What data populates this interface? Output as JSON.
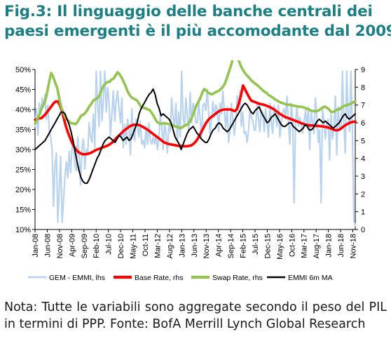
{
  "figure": {
    "title_line1": "Fig.3: Il linguaggio delle banche centrali dei",
    "title_line2": "paesi emergenti è il più accomodante dal 2009",
    "note": "Nota: Tutte le variabili sono aggregate secondo il peso del PIL in termini di PPP. Fonte: BofA Merrill Lynch Global Research"
  },
  "colors": {
    "title": "#1b7f86",
    "gem_emmi": "#b9d3ee",
    "base_rate": "#ff0000",
    "swap_rate": "#92c44f",
    "emmi_6m_ma": "#000000"
  },
  "chart_data": {
    "type": "line",
    "x_start": "2008-01",
    "x_end": "2018-12",
    "x_tick_labels": [
      "Jan-08",
      "Jun-08",
      "Nov-08",
      "Apr-09",
      "Sep-09",
      "Feb-10",
      "Jul-10",
      "Dec-10",
      "May-11",
      "Oct-11",
      "Mar-12",
      "Aug-12",
      "Jan-13",
      "Jun-13",
      "Nov-13",
      "Apr-14",
      "Sep-14",
      "Feb-15",
      "Jul-15",
      "Dec-15",
      "May-16",
      "Oct-16",
      "Mar-17",
      "Aug-17",
      "Jan-18",
      "Jun-18",
      "Nov-18"
    ],
    "y_left": {
      "range": [
        10,
        50
      ],
      "tick_labels": [
        "10%",
        "15%",
        "20%",
        "25%",
        "30%",
        "35%",
        "40%",
        "45%",
        "50%"
      ]
    },
    "y_right": {
      "range": [
        0,
        9
      ],
      "tick_labels": [
        "0",
        "1",
        "2",
        "3",
        "4",
        "5",
        "6",
        "7",
        "8",
        "9"
      ]
    },
    "grid": false,
    "legend_position": "bottom",
    "series": [
      {
        "name": "GEM - EMMI, lhs",
        "axis": "right",
        "style": "light-blue volatile line",
        "values": [
          5.8,
          6.8,
          5.3,
          7.1,
          6.5,
          7.4,
          6.9,
          7.6,
          6.2,
          7.0,
          5.6,
          5.2,
          4.5,
          1.3,
          3.6,
          4.3,
          0.4,
          2.2,
          4.1,
          0.4,
          1.6,
          3.0,
          3.8,
          2.9,
          4.4,
          3.2,
          4.6,
          4.8,
          3.6,
          3.3,
          5.2,
          4.2,
          2.5,
          4.6,
          5.1,
          3.4,
          4.5,
          4.2,
          6.0,
          5.2,
          4.9,
          6.5,
          4.6,
          8.9,
          7.0,
          5.8,
          8.9,
          6.1,
          7.3,
          8.9,
          6.6,
          8.0,
          7.2,
          5.3,
          6.5,
          7.8,
          6.1,
          7.2,
          7.8,
          6.8,
          6.0,
          7.4,
          4.6,
          5.9,
          4.8,
          6.2,
          5.8,
          4.2,
          6.8,
          5.5,
          5.0,
          6.2,
          5.8,
          5.2,
          6.1,
          4.8,
          5.0,
          4.6,
          5.8,
          4.8,
          6.0,
          5.0,
          4.8,
          5.2,
          4.8,
          5.3,
          4.5,
          5.1,
          6.5,
          5.8,
          4.5,
          6.0,
          5.4,
          4.3,
          5.8,
          5.5,
          7.4,
          6.3,
          5.8,
          7.1,
          5.0,
          6.6,
          5.2,
          8.9,
          6.4,
          5.8,
          7.4,
          6.3,
          5.5,
          7.7,
          6.0,
          7.1,
          6.8,
          6.0,
          6.0,
          7.2,
          6.2,
          5.2,
          7.0,
          7.1,
          6.7,
          7.9,
          6.6,
          5.4,
          6.2,
          7.2,
          6.3,
          7.0,
          6.8,
          5.5,
          7.1,
          6.5,
          7.8,
          6.7,
          5.7,
          6.9,
          4.9,
          5.6,
          7.1,
          6.2,
          5.3,
          6.1,
          7.5,
          6.8,
          7.8,
          5.8,
          6.6,
          5.4,
          5.5,
          4.9,
          5.6,
          6.8,
          6.3,
          6.1,
          5.6,
          5.6,
          7.1,
          6.2,
          5.5,
          6.7,
          6.6,
          5.5,
          6.8,
          6.0,
          5.2,
          7.1,
          6.0,
          5.4,
          7.0,
          6.3,
          5.8,
          7.0,
          5.2,
          6.0,
          6.6,
          6.8,
          6.2,
          7.5,
          6.2,
          4.8,
          7.1,
          6.3,
          1.5,
          6.0,
          6.9,
          5.8,
          6.3,
          5.9,
          5.4,
          6.0,
          6.7,
          5.8,
          6.9,
          4.5,
          6.7,
          6.0,
          5.4,
          7.4,
          6.4,
          4.9,
          5.6,
          1.5,
          6.8,
          6.1,
          5.1,
          6.0,
          6.2,
          3.9,
          6.5,
          5.1,
          5.7,
          7.5,
          4.2,
          6.9,
          5.6,
          5.6,
          8.9,
          5.9,
          4.3,
          8.9,
          6.6,
          5.5,
          8.9,
          5.4,
          0.5,
          0.2
        ]
      },
      {
        "name": "Base Rate, rhs",
        "axis": "left",
        "style": "thick red line",
        "values": [
          37.4,
          37.6,
          37.8,
          37.8,
          38.3,
          38.8,
          39.5,
          40.2,
          40.9,
          41.6,
          42.0,
          42.0,
          41.0,
          39.5,
          37.5,
          35.5,
          34.0,
          32.7,
          31.5,
          30.5,
          29.8,
          29.3,
          29.0,
          28.8,
          28.8,
          28.9,
          29.0,
          29.2,
          29.5,
          29.8,
          30.0,
          30.2,
          30.4,
          30.6,
          30.8,
          31.0,
          31.3,
          31.7,
          32.2,
          32.8,
          33.3,
          33.8,
          34.3,
          34.8,
          35.2,
          35.6,
          35.9,
          36.1,
          36.2,
          36.2,
          36.1,
          35.9,
          35.6,
          35.3,
          35.0,
          34.6,
          34.2,
          33.8,
          33.4,
          33.0,
          32.6,
          32.2,
          31.8,
          31.6,
          31.4,
          31.3,
          31.2,
          31.1,
          31.0,
          30.9,
          30.9,
          30.8,
          30.8,
          30.8,
          30.9,
          31.0,
          31.3,
          31.8,
          32.5,
          33.4,
          34.4,
          35.4,
          36.4,
          37.2,
          37.8,
          38.2,
          38.6,
          39.0,
          39.4,
          39.7,
          39.9,
          40.0,
          40.0,
          40.0,
          40.0,
          39.8,
          39.6,
          40.0,
          41.5,
          43.5,
          46.0,
          45.0,
          44.0,
          43.0,
          42.2,
          42.0,
          41.8,
          41.6,
          41.4,
          41.3,
          41.2,
          41.0,
          40.8,
          40.6,
          40.3,
          40.0,
          39.6,
          39.2,
          38.8,
          38.5,
          38.2,
          38.0,
          37.8,
          37.6,
          37.4,
          37.2,
          37.0,
          36.8,
          36.6,
          36.4,
          36.2,
          36.1,
          36.0,
          36.0,
          36.0,
          35.9,
          35.9,
          35.8,
          35.8,
          35.7,
          35.6,
          35.5,
          35.3,
          35.1,
          34.9,
          34.8,
          34.9,
          35.2,
          35.6,
          36.0,
          36.3,
          36.6,
          36.8,
          36.9,
          37.0
        ]
      },
      {
        "name": "Swap Rate, rhs",
        "axis": "left",
        "style": "thick green line",
        "values": [
          36.5,
          37.4,
          38.5,
          39.9,
          41.1,
          42.1,
          44.2,
          46.8,
          49.1,
          48.2,
          46.7,
          45.4,
          42.9,
          40.6,
          39.3,
          38.0,
          37.4,
          36.9,
          36.6,
          36.5,
          36.3,
          36.8,
          37.7,
          38.5,
          38.7,
          39.2,
          39.9,
          40.8,
          41.5,
          42.3,
          42.6,
          42.8,
          43.5,
          44.8,
          45.9,
          46.5,
          46.9,
          46.9,
          47.5,
          47.7,
          48.5,
          49.3,
          48.8,
          48.0,
          46.9,
          45.8,
          44.5,
          43.6,
          43.0,
          42.7,
          42.5,
          42.0,
          41.2,
          40.5,
          40.4,
          40.3,
          40.0,
          39.8,
          39.1,
          38.3,
          37.3,
          36.7,
          36.5,
          36.4,
          36.6,
          36.5,
          36.4,
          36.3,
          36.0,
          35.9,
          35.7,
          35.6,
          35.3,
          35.5,
          35.9,
          36.1,
          36.4,
          37.0,
          38.2,
          39.4,
          40.9,
          41.8,
          42.8,
          44.2,
          45.1,
          44.7,
          44.2,
          43.9,
          43.8,
          44.1,
          44.4,
          44.6,
          45.0,
          45.5,
          46.2,
          47.5,
          49.0,
          50.5,
          52.3,
          54.0,
          53.8,
          52.5,
          51.1,
          50.1,
          49.3,
          48.6,
          48.1,
          47.5,
          47.0,
          46.6,
          46.2,
          45.8,
          45.3,
          44.8,
          44.4,
          44.1,
          43.6,
          43.3,
          43.0,
          42.6,
          42.3,
          42.0,
          41.7,
          41.6,
          41.4,
          41.2,
          41.2,
          41.1,
          41.0,
          40.9,
          40.8,
          40.7,
          40.7,
          40.6,
          40.4,
          40.2,
          40.0,
          39.7,
          39.6,
          39.6,
          39.6,
          39.8,
          40.2,
          40.6,
          40.7,
          40.4,
          40.0,
          39.4,
          39.4,
          39.6,
          40.0,
          40.0,
          40.4,
          40.8,
          41.0,
          41.1,
          41.3,
          41.5,
          41.8,
          42.1
        ]
      },
      {
        "name": "EMMI 6m MA",
        "axis": "right",
        "style": "black line",
        "values": [
          4.5,
          4.6,
          4.7,
          4.8,
          4.9,
          5.0,
          5.2,
          5.4,
          5.6,
          5.8,
          6.0,
          6.2,
          6.4,
          6.6,
          6.6,
          6.5,
          6.2,
          5.9,
          5.5,
          5.0,
          4.4,
          3.8,
          3.3,
          2.9,
          2.7,
          2.6,
          2.6,
          2.8,
          3.1,
          3.4,
          3.7,
          4.0,
          4.2,
          4.5,
          4.8,
          5.0,
          5.1,
          5.2,
          5.1,
          5.0,
          4.9,
          5.1,
          5.3,
          5.2,
          5.0,
          5.1,
          5.2,
          5.0,
          5.1,
          5.4,
          5.7,
          6.0,
          6.5,
          6.8,
          7.0,
          7.2,
          7.4,
          7.6,
          7.7,
          7.9,
          7.6,
          7.1,
          6.8,
          6.4,
          6.5,
          6.4,
          6.3,
          6.2,
          6.0,
          5.6,
          5.2,
          5.0,
          4.8,
          4.5,
          4.8,
          5.1,
          5.4,
          5.6,
          5.7,
          5.8,
          5.6,
          5.4,
          5.3,
          5.1,
          5.0,
          4.9,
          4.9,
          5.1,
          5.4,
          5.6,
          5.7,
          5.9,
          6.0,
          5.9,
          5.7,
          5.6,
          5.5,
          5.6,
          5.8,
          6.0,
          6.2,
          6.4,
          6.6,
          6.8,
          7.0,
          7.1,
          7.0,
          6.8,
          6.6,
          6.5,
          6.7,
          6.8,
          6.9,
          6.6,
          6.4,
          6.2,
          6.0,
          6.1,
          6.3,
          6.4,
          6.5,
          6.3,
          6.1,
          5.9,
          5.8,
          5.8,
          5.9,
          6.0,
          6.0,
          5.8,
          5.7,
          5.6,
          5.5,
          5.6,
          5.7,
          5.9,
          5.8,
          5.6,
          5.6,
          5.7,
          5.9,
          6.1,
          6.2,
          6.1,
          6.0,
          6.1,
          6.0,
          5.9,
          5.8,
          5.7,
          5.8,
          5.9,
          6.0,
          6.2,
          6.4,
          6.5,
          6.3,
          6.2,
          6.3,
          6.4,
          6.5
        ]
      }
    ]
  }
}
